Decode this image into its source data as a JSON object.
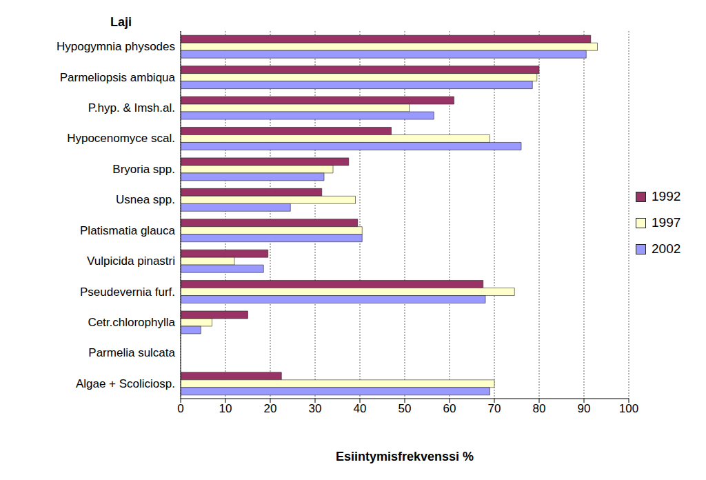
{
  "chart_data": {
    "type": "bar",
    "orientation": "horizontal",
    "ylabel": "Laji",
    "xlabel": "Esiintymisfrekvenssi %",
    "categories": [
      "Hypogymnia physodes",
      "Parmeliopsis ambiqua",
      "P.hyp. & Imsh.al.",
      "Hypocenomyce scal.",
      "Bryoria spp.",
      "Usnea spp.",
      "Platismatia glauca",
      "Vulpicida pinastri",
      "Pseudevernia furf.",
      "Cetr.chlorophylla",
      "Parmelia sulcata",
      "Algae + Scoliciosp."
    ],
    "series": [
      {
        "name": "1992",
        "color": "#993366",
        "values": [
          91.5,
          80,
          61,
          47,
          37.5,
          31.5,
          39.5,
          19.5,
          67.5,
          15,
          0,
          22.5
        ]
      },
      {
        "name": "1997",
        "color": "#FFFFCC",
        "values": [
          93,
          79.5,
          51,
          69,
          34,
          39,
          40.5,
          12,
          74.5,
          7,
          0,
          70
        ]
      },
      {
        "name": "2002",
        "color": "#9999FF",
        "values": [
          90.5,
          78.5,
          56.5,
          76,
          32,
          24.5,
          40.5,
          18.5,
          68,
          4.5,
          0,
          69
        ]
      }
    ],
    "xlim": [
      0,
      100
    ],
    "xticks": [
      0,
      10,
      20,
      30,
      40,
      50,
      60,
      70,
      80,
      90,
      100
    ],
    "grid": true,
    "legend": "right"
  }
}
